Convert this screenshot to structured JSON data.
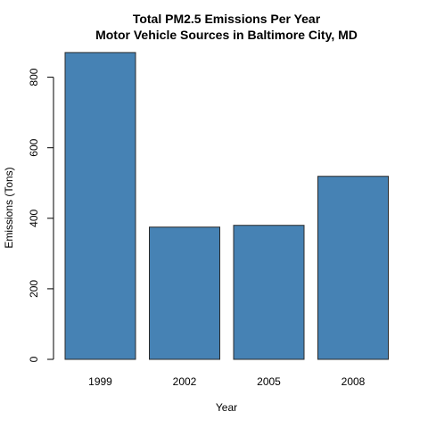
{
  "chart_data": {
    "type": "bar",
    "title": "Total PM2.5 Emissions Per Year",
    "subtitle": "Motor Vehicle Sources in Baltimore City, MD",
    "xlabel": "Year",
    "ylabel": "Emissions (Tons)",
    "categories": [
      "1999",
      "2002",
      "2005",
      "2008"
    ],
    "values": [
      870,
      375,
      380,
      519
    ],
    "ylim": [
      0,
      890
    ],
    "yticks": [
      0,
      200,
      400,
      600,
      800
    ],
    "grid": false,
    "colors": {
      "bar": "#4682B4",
      "border": "#2b2b2b"
    }
  }
}
